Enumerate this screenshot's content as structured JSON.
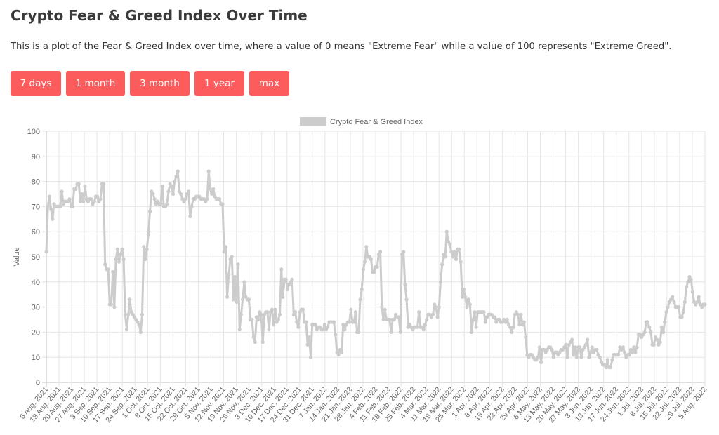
{
  "page": {
    "title": "Crypto Fear & Greed Index Over Time",
    "description": "This is a plot of the Fear & Greed Index over time, where a value of 0 means \"Extreme Fear\" while a value of 100 represents \"Extreme Greed\"."
  },
  "range_buttons": [
    {
      "label": "7 days"
    },
    {
      "label": "1 month"
    },
    {
      "label": "3 month"
    },
    {
      "label": "1 year"
    },
    {
      "label": "max"
    }
  ],
  "colors": {
    "button_bg": "#fc5c5c",
    "button_text": "#ffffff",
    "series": "#cccccc",
    "grid": "#e6e6e6",
    "axis_text": "#666666"
  },
  "chart_data": {
    "type": "line",
    "title": "",
    "xlabel": "",
    "ylabel": "Value",
    "ylim": [
      0,
      100
    ],
    "yticks": [
      0,
      10,
      20,
      30,
      40,
      50,
      60,
      70,
      80,
      90,
      100
    ],
    "grid": true,
    "legend_position": "top-center",
    "x_tick_labels": [
      "6 Aug. 2021",
      "13 Aug. 2021",
      "20 Aug. 2021",
      "27 Aug. 2021",
      "3 Sep. 2021",
      "10 Sep. 2021",
      "17 Sep. 2021",
      "24 Sep. 2021",
      "1 Oct. 2021",
      "8 Oct. 2021",
      "15 Oct. 2021",
      "22 Oct. 2021",
      "29 Oct. 2021",
      "5 Nov. 2021",
      "12 Nov. 2021",
      "19 Nov. 2021",
      "26 Nov. 2021",
      "3 Dec. 2021",
      "10 Dec. 2021",
      "17 Dec. 2021",
      "24 Dec. 2021",
      "31 Dec. 2021",
      "7 Jan. 2022",
      "14 Jan. 2022",
      "21 Jan. 2022",
      "28 Jan. 2022",
      "4 Feb. 2022",
      "11 Feb. 2022",
      "18 Feb. 2022",
      "25 Feb. 2022",
      "4 Mar. 2022",
      "11 Mar. 2022",
      "18 Mar. 2022",
      "25 Mar. 2022",
      "1 Apr. 2022",
      "8 Apr. 2022",
      "15 Apr. 2022",
      "22 Apr. 2022",
      "29 Apr. 2022",
      "6 May. 2022",
      "13 May. 2022",
      "20 May. 2022",
      "27 May. 2022",
      "3 Jun. 2022",
      "10 Jun. 2022",
      "17 Jun. 2022",
      "24 Jun. 2022",
      "1 Jul. 2022",
      "8 Jul. 2022",
      "15 Jul. 2022",
      "22 Jul. 2022",
      "29 Jul. 2022",
      "5 Aug. 2022"
    ],
    "series": [
      {
        "name": "Crypto Fear & Greed Index",
        "color": "#cccccc",
        "values": [
          52,
          70,
          74,
          69,
          65,
          71,
          70,
          70,
          70,
          70,
          76,
          71,
          72,
          72,
          72,
          73,
          70,
          70,
          77,
          77,
          79,
          79,
          72,
          75,
          72,
          78,
          73,
          72,
          73,
          73,
          71,
          72,
          74,
          74,
          72,
          73,
          79,
          79,
          47,
          45,
          45,
          31,
          31,
          44,
          30,
          49,
          53,
          48,
          51,
          53,
          49,
          27,
          21,
          27,
          33,
          28,
          27,
          26,
          25,
          24,
          23,
          20,
          27,
          54,
          49,
          53,
          59,
          68,
          76,
          75,
          73,
          71,
          72,
          71,
          71,
          78,
          70,
          70,
          71,
          76,
          79,
          78,
          75,
          80,
          82,
          84,
          76,
          75,
          73,
          72,
          73,
          75,
          76,
          66,
          70,
          73,
          73,
          74,
          74,
          74,
          73,
          73,
          73,
          72,
          73,
          84,
          77,
          75,
          77,
          74,
          73,
          73,
          73,
          71,
          71,
          52,
          54,
          34,
          43,
          49,
          50,
          33,
          42,
          32,
          47,
          21,
          27,
          33,
          40,
          34,
          33,
          33,
          25,
          25,
          18,
          16,
          26,
          25,
          28,
          27,
          16,
          27,
          28,
          28,
          21,
          28,
          29,
          23,
          29,
          24,
          25,
          27,
          45,
          34,
          41,
          41,
          37,
          39,
          40,
          41,
          27,
          28,
          24,
          22,
          28,
          29,
          29,
          24,
          24,
          15,
          18,
          10,
          23,
          23,
          23,
          21,
          22,
          22,
          21,
          21,
          23,
          21,
          22,
          24,
          24,
          24,
          24,
          19,
          12,
          11,
          13,
          12,
          23,
          21,
          23,
          24,
          24,
          29,
          24,
          24,
          28,
          20,
          20,
          33,
          37,
          45,
          48,
          54,
          50,
          50,
          49,
          44,
          44,
          46,
          46,
          51,
          52,
          30,
          25,
          29,
          25,
          25,
          25,
          20,
          25,
          25,
          27,
          26,
          26,
          20,
          51,
          52,
          39,
          33,
          22,
          23,
          22,
          21,
          22,
          22,
          22,
          28,
          22,
          22,
          21,
          23,
          25,
          27,
          27,
          26,
          27,
          31,
          30,
          26,
          30,
          40,
          47,
          51,
          50,
          60,
          56,
          55,
          52,
          50,
          52,
          49,
          53,
          53,
          48,
          34,
          37,
          34,
          30,
          33,
          31,
          20,
          25,
          28,
          22,
          28,
          28,
          28,
          28,
          28,
          24,
          26,
          27,
          27,
          27,
          26,
          26,
          24,
          25,
          25,
          24,
          24,
          25,
          24,
          25,
          23,
          22,
          20,
          22,
          27,
          28,
          27,
          23,
          27,
          23,
          24,
          18,
          11,
          10,
          11,
          11,
          10,
          9,
          9,
          10,
          14,
          8,
          13,
          13,
          12,
          13,
          14,
          14,
          13,
          10,
          12,
          12,
          11,
          12,
          13,
          13,
          14,
          15,
          10,
          15,
          16,
          17,
          11,
          14,
          10,
          14,
          14,
          10,
          13,
          14,
          15,
          17,
          10,
          12,
          14,
          12,
          13,
          13,
          11,
          10,
          8,
          7,
          7,
          6,
          9,
          6,
          6,
          9,
          11,
          11,
          11,
          11,
          14,
          13,
          14,
          12,
          10,
          11,
          11,
          13,
          12,
          14,
          12,
          14,
          19,
          19,
          18,
          19,
          20,
          24,
          24,
          22,
          20,
          15,
          15,
          18,
          17,
          15,
          16,
          22,
          20,
          24,
          28,
          30,
          32,
          33,
          34,
          32,
          30,
          30,
          30,
          26,
          26,
          28,
          32,
          38,
          40,
          42,
          41,
          36,
          32,
          31,
          32,
          34,
          31,
          30,
          31,
          31
        ]
      }
    ]
  }
}
